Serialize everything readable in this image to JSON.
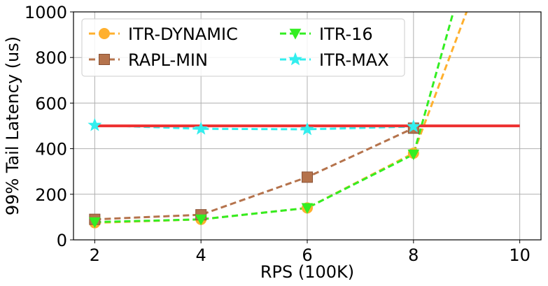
{
  "chart_data": {
    "type": "line",
    "xlabel": "RPS (100K)",
    "ylabel": "99% Tail Latency (us)",
    "xlim": [
      1.6,
      10.4
    ],
    "ylim": [
      0,
      1000
    ],
    "xticks": [
      2,
      4,
      6,
      8,
      10
    ],
    "yticks": [
      0,
      200,
      400,
      600,
      800,
      1000
    ],
    "grid": true,
    "legend_placement": "top-left",
    "threshold": {
      "value": 500,
      "x_range": [
        2,
        10
      ],
      "color": "#ee3333"
    },
    "series": [
      {
        "name": "ITR-DYNAMIC",
        "color": "#ffb02e",
        "marker": "circle",
        "x": [
          2,
          4,
          6,
          8,
          9
        ],
        "y": [
          75,
          90,
          140,
          380,
          1000
        ]
      },
      {
        "name": "RAPL-MIN",
        "color": "#b5734c",
        "marker": "square",
        "x": [
          2,
          4,
          6,
          8
        ],
        "y": [
          90,
          110,
          275,
          490
        ]
      },
      {
        "name": "ITR-16",
        "color": "#33ee22",
        "marker": "triangle-down",
        "x": [
          2,
          4,
          6,
          8,
          8.75
        ],
        "y": [
          78,
          90,
          140,
          375,
          1000
        ]
      },
      {
        "name": "ITR-MAX",
        "color": "#33eeee",
        "marker": "star",
        "x": [
          2,
          4,
          6,
          8
        ],
        "y": [
          503,
          487,
          485,
          497
        ]
      }
    ]
  }
}
